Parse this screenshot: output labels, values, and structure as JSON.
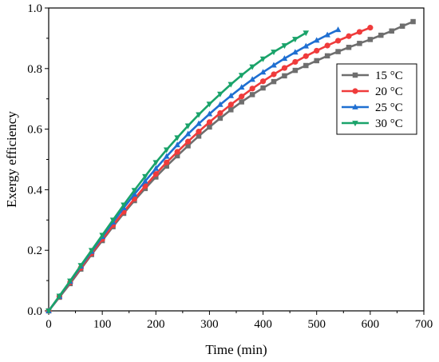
{
  "chart_data": {
    "type": "line",
    "xlabel": "Time (min)",
    "ylabel": "Exergy efficiency",
    "xlim": [
      0,
      700
    ],
    "ylim": [
      0,
      1.0
    ],
    "xticks": [
      0,
      100,
      200,
      300,
      400,
      500,
      600,
      700
    ],
    "yticks": [
      0.0,
      0.2,
      0.4,
      0.6,
      0.8,
      1.0
    ],
    "xtick_labels": [
      "0",
      "100",
      "200",
      "300",
      "400",
      "500",
      "600",
      "700"
    ],
    "ytick_labels": [
      "0.0",
      "0.2",
      "0.4",
      "0.6",
      "0.8",
      "1.0"
    ],
    "grid": false,
    "legend_position": "top-right",
    "series": [
      {
        "name": "15 °C",
        "color": "#6e6e6e",
        "marker": "square",
        "x": [
          0,
          20,
          40,
          60,
          80,
          100,
          120,
          140,
          160,
          180,
          200,
          220,
          240,
          260,
          280,
          300,
          320,
          340,
          360,
          380,
          400,
          420,
          440,
          460,
          480,
          500,
          520,
          540,
          560,
          580,
          600,
          620,
          640,
          660,
          680
        ],
        "y": [
          0.0,
          0.045,
          0.09,
          0.138,
          0.186,
          0.232,
          0.278,
          0.322,
          0.364,
          0.404,
          0.442,
          0.478,
          0.512,
          0.545,
          0.577,
          0.607,
          0.636,
          0.664,
          0.69,
          0.714,
          0.736,
          0.757,
          0.776,
          0.794,
          0.81,
          0.826,
          0.842,
          0.856,
          0.87,
          0.883,
          0.896,
          0.91,
          0.924,
          0.94,
          0.955
        ]
      },
      {
        "name": "20 °C",
        "color": "#ef3b3b",
        "marker": "circle",
        "x": [
          0,
          20,
          40,
          60,
          80,
          100,
          120,
          140,
          160,
          180,
          200,
          220,
          240,
          260,
          280,
          300,
          320,
          340,
          360,
          380,
          400,
          420,
          440,
          460,
          480,
          500,
          520,
          540,
          560,
          580,
          600
        ],
        "y": [
          0.0,
          0.047,
          0.094,
          0.142,
          0.19,
          0.237,
          0.283,
          0.327,
          0.37,
          0.412,
          0.452,
          0.49,
          0.525,
          0.559,
          0.592,
          0.623,
          0.653,
          0.681,
          0.708,
          0.734,
          0.758,
          0.781,
          0.802,
          0.822,
          0.841,
          0.859,
          0.876,
          0.892,
          0.907,
          0.921,
          0.935
        ]
      },
      {
        "name": "25 °C",
        "color": "#1f6fd1",
        "marker": "triangle-up",
        "x": [
          0,
          20,
          40,
          60,
          80,
          100,
          120,
          140,
          160,
          180,
          200,
          220,
          240,
          260,
          280,
          300,
          320,
          340,
          360,
          380,
          400,
          420,
          440,
          460,
          480,
          500,
          520,
          540
        ],
        "y": [
          0.0,
          0.048,
          0.097,
          0.147,
          0.196,
          0.245,
          0.293,
          0.34,
          0.385,
          0.428,
          0.47,
          0.51,
          0.548,
          0.584,
          0.618,
          0.65,
          0.681,
          0.71,
          0.738,
          0.764,
          0.788,
          0.811,
          0.833,
          0.854,
          0.874,
          0.893,
          0.911,
          0.928
        ]
      },
      {
        "name": "30 °C",
        "color": "#1aa36a",
        "marker": "triangle-down",
        "x": [
          0,
          20,
          40,
          60,
          80,
          100,
          120,
          140,
          160,
          180,
          200,
          220,
          240,
          260,
          280,
          300,
          320,
          340,
          360,
          380,
          400,
          420,
          440,
          460,
          480
        ],
        "y": [
          0.0,
          0.049,
          0.099,
          0.15,
          0.2,
          0.25,
          0.3,
          0.35,
          0.398,
          0.444,
          0.49,
          0.532,
          0.572,
          0.611,
          0.648,
          0.683,
          0.716,
          0.748,
          0.778,
          0.806,
          0.832,
          0.855,
          0.876,
          0.897,
          0.918
        ]
      }
    ]
  }
}
